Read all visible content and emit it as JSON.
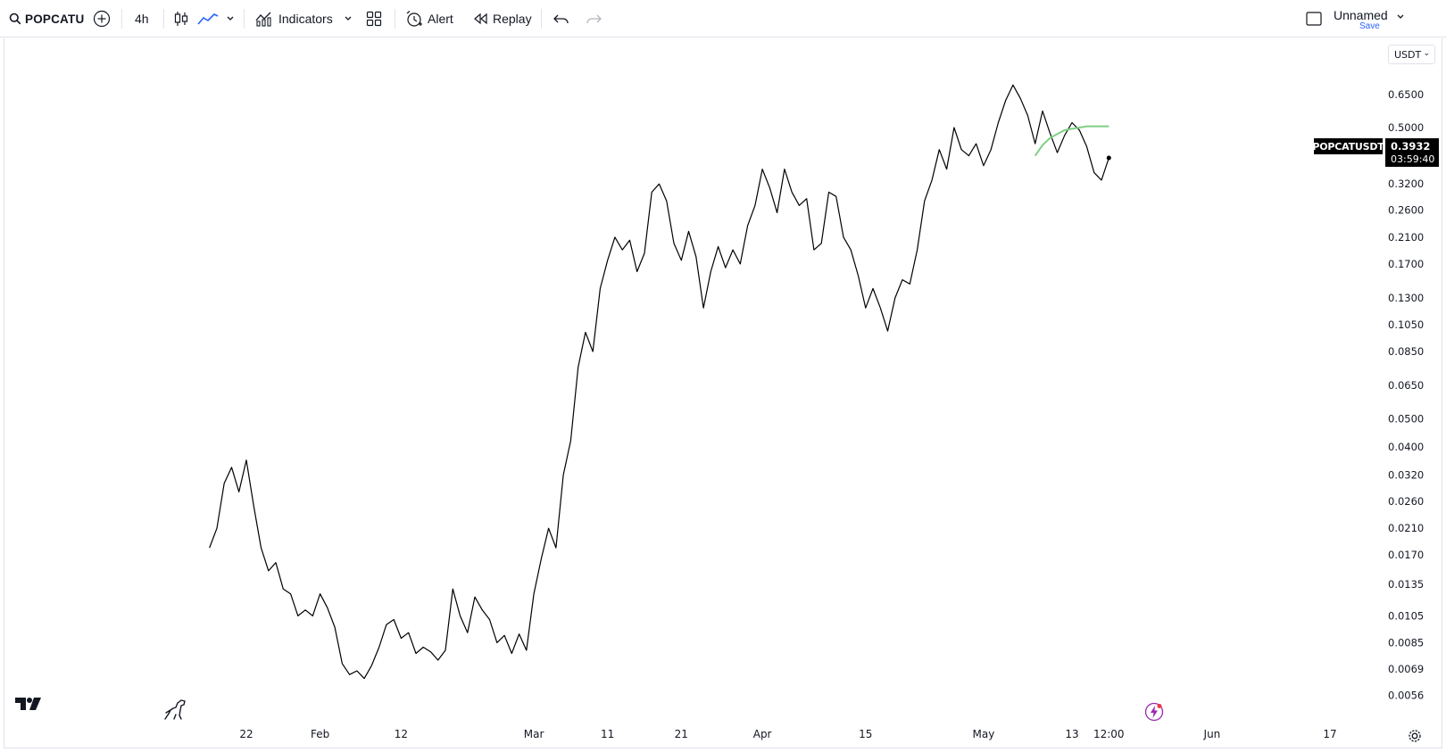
{
  "toolbar": {
    "symbol": "POPCATU",
    "interval": "4h",
    "indicators_label": "Indicators",
    "alert_label": "Alert",
    "replay_label": "Replay",
    "layout_name": "Unnamed",
    "save_label": "Save"
  },
  "price_scale": {
    "currency": "USDT",
    "labels": [
      "0.6500",
      "0.5000",
      "0.3200",
      "0.2600",
      "0.2100",
      "0.1700",
      "0.1300",
      "0.1050",
      "0.0850",
      "0.0650",
      "0.0500",
      "0.0400",
      "0.0320",
      "0.0260",
      "0.0210",
      "0.0170",
      "0.0135",
      "0.0105",
      "0.0085",
      "0.0069",
      "0.0056"
    ],
    "log_scale": true
  },
  "time_axis": {
    "labels": [
      "22",
      "Feb",
      "12",
      "Mar",
      "11",
      "21",
      "Apr",
      "15",
      "May",
      "13",
      "12:00",
      "Jun",
      "17"
    ]
  },
  "last_price": {
    "symbol_label": "POPCATUSDT",
    "value": "0.3932",
    "countdown": "03:59:40"
  },
  "colors": {
    "series_line": "#000000",
    "overlay_line": "#7fcf84",
    "price_tag_bg": "#000000",
    "accent": "#2962ff",
    "bolt_accent": "#9c27b0"
  },
  "chart_data": {
    "type": "line",
    "title": "",
    "xlabel": "",
    "ylabel": "",
    "y_scale": "log",
    "ylim": [
      0.0052,
      0.78
    ],
    "x": [
      "2024-01-17",
      "2024-01-18",
      "2024-01-19",
      "2024-01-20",
      "2024-01-21",
      "2024-01-22",
      "2024-01-23",
      "2024-01-24",
      "2024-01-25",
      "2024-01-26",
      "2024-01-27",
      "2024-01-28",
      "2024-01-29",
      "2024-01-30",
      "2024-01-31",
      "2024-02-01",
      "2024-02-02",
      "2024-02-03",
      "2024-02-04",
      "2024-02-05",
      "2024-02-06",
      "2024-02-07",
      "2024-02-08",
      "2024-02-09",
      "2024-02-10",
      "2024-02-11",
      "2024-02-12",
      "2024-02-13",
      "2024-02-14",
      "2024-02-15",
      "2024-02-16",
      "2024-02-17",
      "2024-02-18",
      "2024-02-19",
      "2024-02-20",
      "2024-02-21",
      "2024-02-22",
      "2024-02-23",
      "2024-02-24",
      "2024-02-25",
      "2024-02-26",
      "2024-02-27",
      "2024-02-28",
      "2024-02-29",
      "2024-03-01",
      "2024-03-02",
      "2024-03-03",
      "2024-03-04",
      "2024-03-05",
      "2024-03-06",
      "2024-03-07",
      "2024-03-08",
      "2024-03-09",
      "2024-03-10",
      "2024-03-11",
      "2024-03-12",
      "2024-03-13",
      "2024-03-14",
      "2024-03-15",
      "2024-03-16",
      "2024-03-17",
      "2024-03-18",
      "2024-03-19",
      "2024-03-20",
      "2024-03-21",
      "2024-03-22",
      "2024-03-23",
      "2024-03-24",
      "2024-03-25",
      "2024-03-26",
      "2024-03-27",
      "2024-03-28",
      "2024-03-29",
      "2024-03-30",
      "2024-03-31",
      "2024-04-01",
      "2024-04-02",
      "2024-04-03",
      "2024-04-04",
      "2024-04-05",
      "2024-04-06",
      "2024-04-07",
      "2024-04-08",
      "2024-04-09",
      "2024-04-10",
      "2024-04-11",
      "2024-04-12",
      "2024-04-13",
      "2024-04-14",
      "2024-04-15",
      "2024-04-16",
      "2024-04-17",
      "2024-04-18",
      "2024-04-19",
      "2024-04-20",
      "2024-04-21",
      "2024-04-22",
      "2024-04-23",
      "2024-04-24",
      "2024-04-25",
      "2024-04-26",
      "2024-04-27",
      "2024-04-28",
      "2024-04-29",
      "2024-04-30",
      "2024-05-01",
      "2024-05-02",
      "2024-05-03",
      "2024-05-04",
      "2024-05-05",
      "2024-05-06",
      "2024-05-07",
      "2024-05-08",
      "2024-05-09",
      "2024-05-10",
      "2024-05-11",
      "2024-05-12",
      "2024-05-13",
      "2024-05-14",
      "2024-05-15",
      "2024-05-16",
      "2024-05-17",
      "2024-05-18"
    ],
    "series": [
      {
        "values": [
          0.018,
          0.021,
          0.03,
          0.034,
          0.028,
          0.036,
          0.025,
          0.018,
          0.015,
          0.016,
          0.013,
          0.0125,
          0.0105,
          0.011,
          0.0105,
          0.0125,
          0.0112,
          0.0096,
          0.0072,
          0.0066,
          0.0068,
          0.0064,
          0.0071,
          0.0082,
          0.0098,
          0.0102,
          0.0088,
          0.0092,
          0.0078,
          0.0082,
          0.0079,
          0.0074,
          0.008,
          0.013,
          0.0105,
          0.0092,
          0.0122,
          0.011,
          0.0102,
          0.0085,
          0.009,
          0.0078,
          0.0091,
          0.008,
          0.0125,
          0.0165,
          0.021,
          0.018,
          0.032,
          0.042,
          0.075,
          0.099,
          0.085,
          0.14,
          0.175,
          0.21,
          0.19,
          0.205,
          0.16,
          0.185,
          0.3,
          0.32,
          0.28,
          0.2,
          0.175,
          0.22,
          0.18,
          0.12,
          0.16,
          0.195,
          0.165,
          0.19,
          0.17,
          0.23,
          0.27,
          0.36,
          0.31,
          0.255,
          0.36,
          0.3,
          0.27,
          0.285,
          0.19,
          0.2,
          0.3,
          0.29,
          0.21,
          0.19,
          0.155,
          0.12,
          0.14,
          0.12,
          0.1,
          0.13,
          0.15,
          0.145,
          0.19,
          0.28,
          0.33,
          0.42,
          0.36,
          0.5,
          0.42,
          0.4,
          0.44,
          0.37,
          0.42,
          0.52,
          0.62,
          0.7,
          0.63,
          0.55,
          0.44,
          0.57,
          0.48,
          0.41,
          0.47,
          0.52,
          0.49,
          0.43,
          0.35,
          0.33,
          0.3932
        ]
      },
      {
        "values": [
          null,
          null,
          null,
          null,
          null,
          null,
          null,
          null,
          null,
          null,
          null,
          null,
          null,
          null,
          null,
          null,
          null,
          null,
          null,
          null,
          null,
          null,
          null,
          null,
          null,
          null,
          null,
          null,
          null,
          null,
          null,
          null,
          null,
          null,
          null,
          null,
          null,
          null,
          null,
          null,
          null,
          null,
          null,
          null,
          null,
          null,
          null,
          null,
          null,
          null,
          null,
          null,
          null,
          null,
          null,
          null,
          null,
          null,
          null,
          null,
          null,
          null,
          null,
          null,
          null,
          null,
          null,
          null,
          null,
          null,
          null,
          null,
          null,
          null,
          null,
          null,
          null,
          null,
          null,
          null,
          null,
          null,
          null,
          null,
          null,
          null,
          null,
          null,
          null,
          null,
          null,
          null,
          null,
          null,
          null,
          null,
          null,
          null,
          null,
          null,
          null,
          null,
          null,
          null,
          null,
          null,
          null,
          null,
          null,
          null,
          null,
          null,
          0.4,
          0.435,
          0.46,
          0.475,
          0.49,
          0.495,
          0.5,
          0.505,
          0.505,
          0.505,
          0.505
        ]
      }
    ]
  }
}
